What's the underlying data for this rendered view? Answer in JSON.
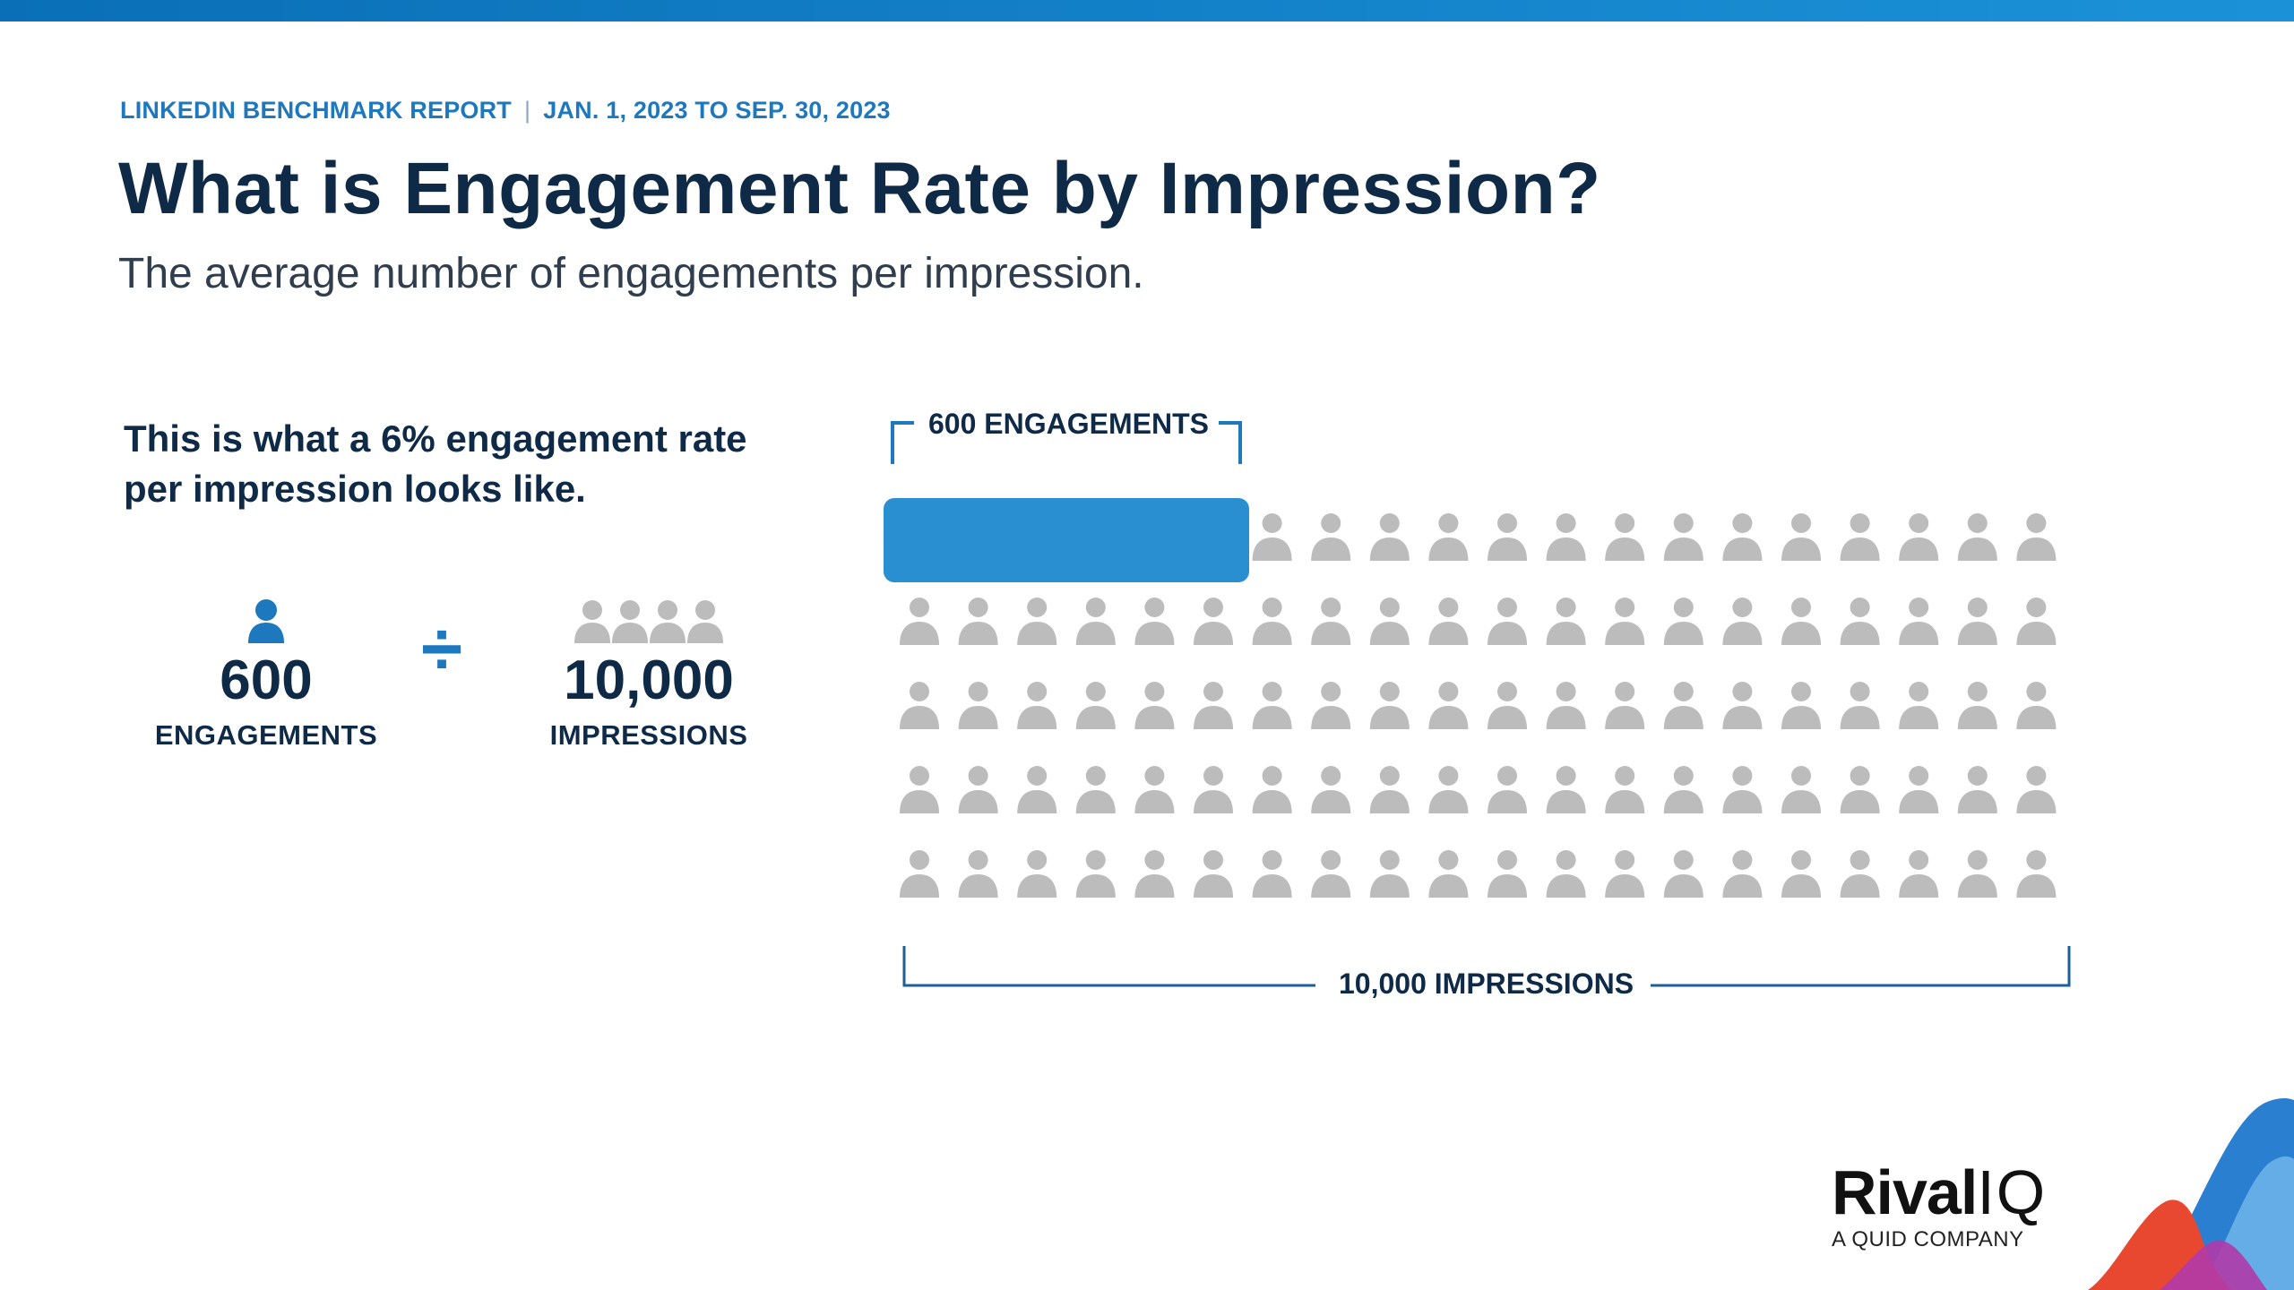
{
  "header": {
    "report_name": "LINKEDIN BENCHMARK REPORT",
    "separator": "|",
    "date_range": "JAN. 1, 2023 TO SEP. 30, 2023",
    "title": "What is Engagement Rate by Impression?",
    "subtitle": "The average number of engagements per impression."
  },
  "explainer": {
    "lead": "This is what a 6% engagement rate per impression looks like.",
    "engagements_value": "600",
    "engagements_label": "ENGAGEMENTS",
    "operator": "÷",
    "impressions_value": "10,000",
    "impressions_label": "IMPRESSIONS",
    "engagement_icon": "person-icon",
    "impressions_icon": "group-icon"
  },
  "chart_data": {
    "type": "pictogram",
    "rows": 5,
    "columns": 20,
    "highlighted_units": 6,
    "total_units": 100,
    "top_label": "600 ENGAGEMENTS",
    "bottom_label": "10,000 IMPRESSIONS",
    "rate_percent": 6
  },
  "brand": {
    "logo_word": "Rival",
    "logo_suffix": "IQ",
    "tagline": "A QUID COMPANY"
  },
  "colors": {
    "accent": "#1d78bd",
    "highlight": "#2a8fd0",
    "navy": "#0e2a47",
    "person_gray": "#bcbcbc"
  }
}
